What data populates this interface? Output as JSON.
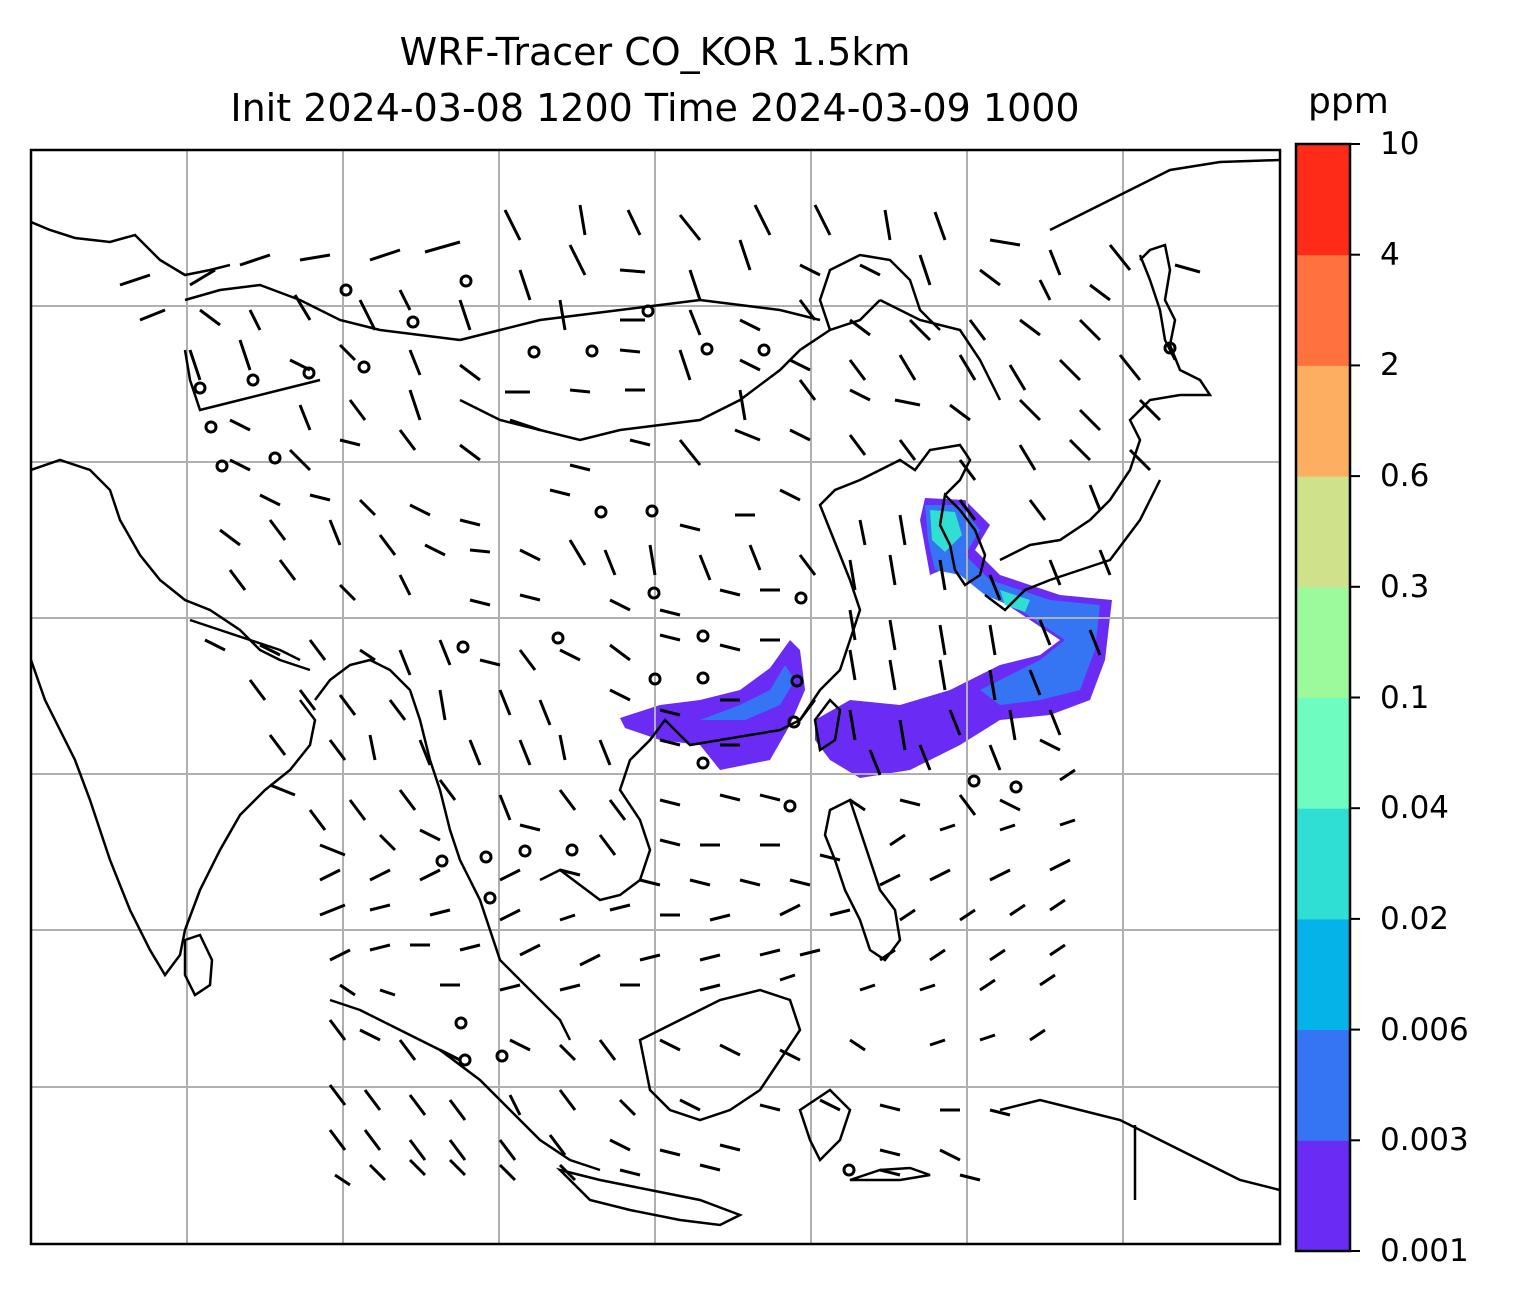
{
  "title": {
    "line1": "WRF-Tracer CO_KOR 1.5km",
    "line2": "Init 2024-03-08 1200 Time 2024-03-09 1000"
  },
  "colorbar": {
    "unit": "ppm",
    "levels": [
      "0.001",
      "0.003",
      "0.006",
      "0.02",
      "0.04",
      "0.1",
      "0.3",
      "0.6",
      "2",
      "4",
      "10"
    ],
    "colors": [
      "#6a2cf5",
      "#3575f3",
      "#06b3e8",
      "#2fdfd4",
      "#6ffcc0",
      "#9cfa9b",
      "#cfe28b",
      "#feae60",
      "#ff7240",
      "#fe2b18"
    ]
  },
  "map": {
    "grid_color": "#b0b0b0",
    "coastline_color": "#000000",
    "barb_color": "#000000",
    "plume_colors": {
      "outer": "#6a2cf5",
      "mid": "#3575f3",
      "inner": "#2fdfd4"
    }
  }
}
